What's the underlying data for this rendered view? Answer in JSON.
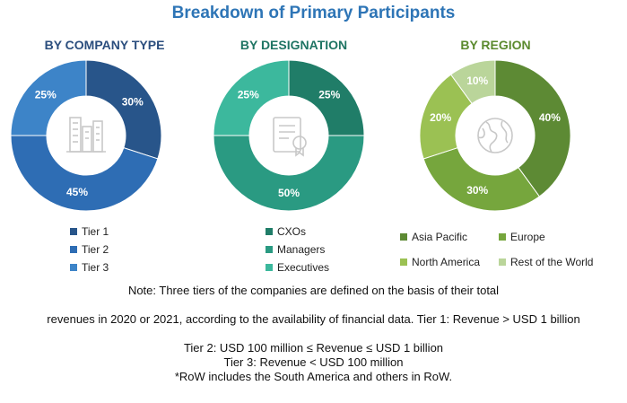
{
  "title": "Breakdown of Primary Participants",
  "colors": {
    "title": "#2e75b6"
  },
  "chart_data": [
    {
      "type": "pie",
      "title": "BY COMPANY TYPE",
      "title_color": "#2b4e7e",
      "icon": "buildings-icon",
      "categories": [
        "Tier 1",
        "Tier 2",
        "Tier 3"
      ],
      "values": [
        30,
        45,
        25
      ],
      "value_labels": [
        "30%",
        "45%",
        "25%"
      ],
      "colors": [
        "#28558a",
        "#2e6db4",
        "#3d84c8"
      ],
      "legend": "bottom"
    },
    {
      "type": "pie",
      "title": "BY DESIGNATION",
      "title_color": "#1e7463",
      "icon": "certificate-icon",
      "categories": [
        "CXOs",
        "Managers",
        "Executives"
      ],
      "values": [
        25,
        50,
        25
      ],
      "value_labels": [
        "25%",
        "50%",
        "25%"
      ],
      "colors": [
        "#207d68",
        "#2a9a82",
        "#3cb89d"
      ],
      "legend": "bottom"
    },
    {
      "type": "pie",
      "title": "BY REGION",
      "title_color": "#5b8a2e",
      "icon": "globe-icon",
      "categories": [
        "Asia Pacific",
        "Europe",
        "North America",
        "Rest of the World"
      ],
      "values": [
        40,
        30,
        20,
        10
      ],
      "value_labels": [
        "40%",
        "30%",
        "20%",
        "10%"
      ],
      "colors": [
        "#5d8a34",
        "#76a63d",
        "#9bc153",
        "#bad59a"
      ],
      "legend": "bottom"
    }
  ],
  "notes": {
    "line1": "Note: Three tiers of the companies are defined on the basis of their total",
    "line2": "revenues in 2020 or 2021, according to the availability of financial data. Tier 1: Revenue > USD 1 billion",
    "line3": "Tier 2: USD 100 million ≤ Revenue ≤ USD 1 billion",
    "line4": "Tier 3: Revenue < USD 100 million",
    "line5": "*RoW includes the South America and others in RoW."
  }
}
